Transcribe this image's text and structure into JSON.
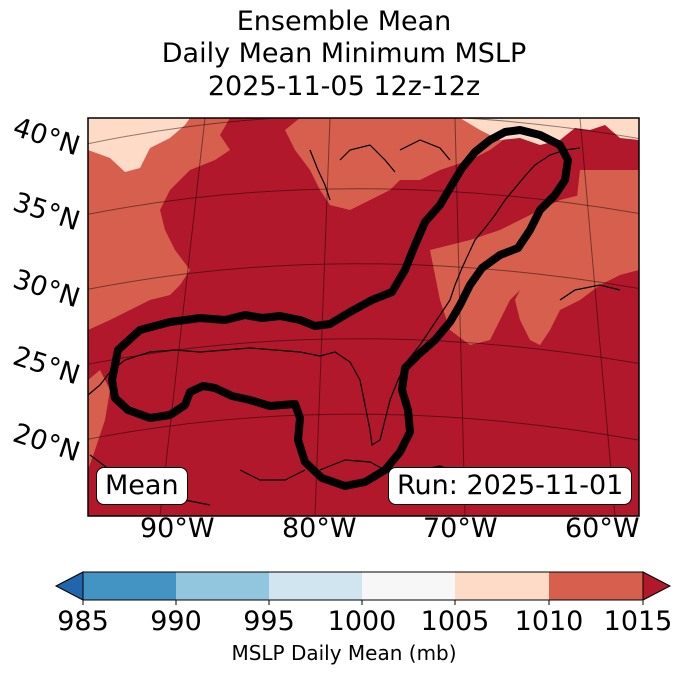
{
  "title": {
    "line1": "Ensemble Mean",
    "line2": "Daily Mean Minimum MSLP",
    "line3": "2025-11-05 12z-12z"
  },
  "map": {
    "latitude_labels": [
      "40°N",
      "35°N",
      "30°N",
      "25°N",
      "20°N"
    ],
    "longitude_labels": [
      "90°W",
      "80°W",
      "70°W",
      "60°W"
    ],
    "mean_box": "Mean",
    "run_box": "Run: 2025-11-01",
    "fill_colors": {
      "1010_1015": "#b2182b",
      "1005_1010": "#d6604d",
      "1000_1005": "#fddbc7",
      "land_outline": "#000000",
      "contour": "#000000"
    }
  },
  "colorbar": {
    "ticks": [
      "985",
      "990",
      "995",
      "1000",
      "1005",
      "1010",
      "1015"
    ],
    "colors": [
      "#2166ac",
      "#4393c3",
      "#92c5de",
      "#d1e5f0",
      "#f7f7f7",
      "#fddbc7",
      "#d6604d",
      "#b2182b"
    ],
    "label": "MSLP Daily Mean (mb)"
  }
}
